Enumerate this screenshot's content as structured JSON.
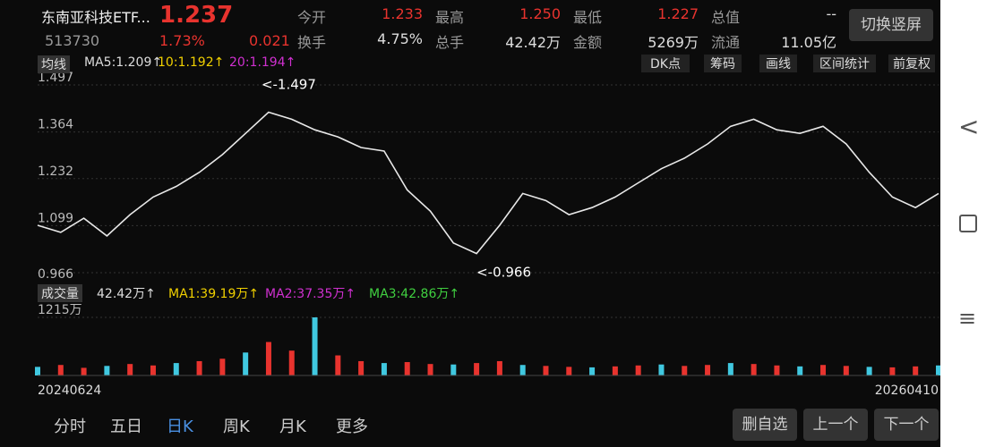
{
  "header": {
    "name": "东南亚科技ETF...",
    "price": "1.237",
    "code": "513730",
    "change_pct": "1.73%",
    "change": "0.021",
    "stats": [
      {
        "label": "今开",
        "value": "1.233"
      },
      {
        "label": "最高",
        "value": "1.250"
      },
      {
        "label": "最低",
        "value": "1.227"
      },
      {
        "label": "总值",
        "value": "--"
      },
      {
        "label": "换手",
        "value": "4.75%"
      },
      {
        "label": "总手",
        "value": "42.42万"
      },
      {
        "label": "金额",
        "value": "5269万"
      },
      {
        "label": "流通",
        "value": "11.05亿"
      }
    ],
    "button": "切换竖屏"
  },
  "toolbar": {
    "ma": "均线",
    "ma_items": [
      "MA5:1.209↑",
      "10:1.192↑",
      "20:1.194↑"
    ],
    "buttons": [
      "DK点",
      "筹码",
      "画线",
      "区间统计",
      "前复权"
    ]
  },
  "volume_bar": {
    "label": "成交量",
    "items": [
      "42.42万↑",
      "MA1:39.19万↑",
      "MA2:37.35万↑",
      "MA3:42.86万↑"
    ]
  },
  "chart_data": [
    {
      "type": "line",
      "color": "#e8e8e8",
      "ylim": [
        0.966,
        1.497
      ],
      "yticks": [
        1.497,
        1.364,
        1.232,
        1.099,
        0.966
      ],
      "annotations": [
        "<-1.497",
        "<-0.966"
      ],
      "values": [
        1.1,
        1.08,
        1.12,
        1.07,
        1.13,
        1.18,
        1.21,
        1.25,
        1.3,
        1.36,
        1.42,
        1.4,
        1.37,
        1.35,
        1.32,
        1.31,
        1.2,
        1.14,
        1.05,
        1.02,
        1.1,
        1.19,
        1.17,
        1.13,
        1.15,
        1.18,
        1.22,
        1.26,
        1.29,
        1.33,
        1.38,
        1.4,
        1.37,
        1.36,
        1.38,
        1.33,
        1.25,
        1.18,
        1.15,
        1.19
      ]
    },
    {
      "type": "bar",
      "color": "#e8332e",
      "ylim": [
        0,
        1215
      ],
      "yticks": [
        {
          "value": 1215,
          "label": "1215万"
        }
      ],
      "date_range": [
        "20240624",
        "20260410"
      ],
      "values": [
        180,
        220,
        160,
        200,
        240,
        210,
        260,
        300,
        350,
        480,
        700,
        520,
        1215,
        420,
        300,
        260,
        280,
        240,
        230,
        260,
        300,
        220,
        200,
        180,
        170,
        190,
        210,
        230,
        200,
        220,
        260,
        240,
        210,
        190,
        220,
        200,
        180,
        170,
        190,
        210
      ]
    }
  ],
  "tabs": [
    "分时",
    "五日",
    "日K",
    "周K",
    "月K",
    "更多"
  ],
  "actions": [
    "删自选",
    "上一个",
    "下一个"
  ]
}
